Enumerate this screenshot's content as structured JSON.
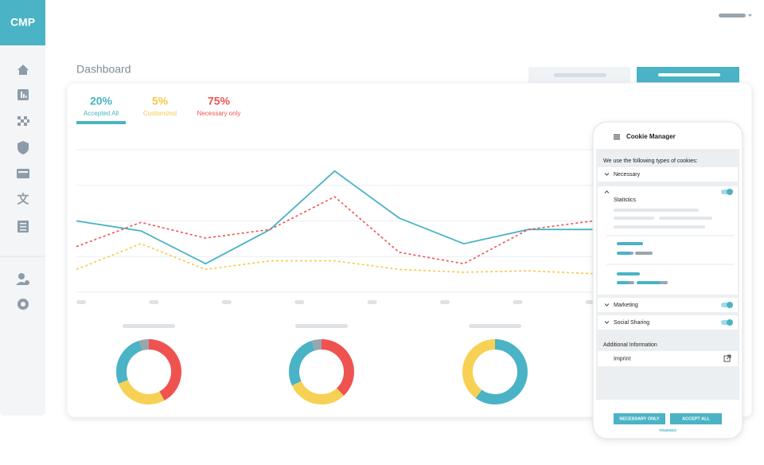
{
  "sidebar": {
    "logo": "CMP"
  },
  "dashboard": {
    "title": "Dashboard",
    "stats": [
      {
        "value": "20%",
        "label": "Accepted All",
        "color": "#4ab3c6"
      },
      {
        "value": "5%",
        "label": "Customized",
        "color": "#f7c948"
      },
      {
        "value": "75%",
        "label": "Necessary only",
        "color": "#ef5350"
      }
    ],
    "line_chart": {
      "type": "line",
      "x": [
        0,
        1,
        2,
        3,
        4,
        5,
        6,
        7,
        8
      ],
      "xlim": [
        0,
        8
      ],
      "ylim": [
        0,
        100
      ],
      "grid": [
        0,
        25,
        50,
        75,
        100
      ],
      "series": [
        {
          "color": "#4ab3c6",
          "dashed": false,
          "values": [
            50,
            43,
            20,
            44,
            85,
            52,
            34,
            44,
            44
          ]
        },
        {
          "color": "#ef5350",
          "dashed": true,
          "values": [
            32,
            49,
            38,
            44,
            67,
            28,
            20,
            44,
            50
          ]
        },
        {
          "color": "#f7c948",
          "dashed": true,
          "values": [
            16,
            34,
            16,
            22,
            22,
            16,
            14,
            15,
            13
          ]
        }
      ]
    },
    "donuts": [
      {
        "type": "pie",
        "values": [
          42,
          27,
          26,
          5
        ],
        "colors": [
          "#ef5350",
          "#f7d154",
          "#4ab3c6",
          "#9aa5ae"
        ]
      },
      {
        "type": "pie",
        "values": [
          38,
          30,
          27,
          5
        ],
        "colors": [
          "#ef5350",
          "#f7d154",
          "#4ab3c6",
          "#9aa5ae"
        ]
      },
      {
        "type": "pie",
        "values": [
          60,
          40
        ],
        "colors": [
          "#4ab3c6",
          "#f7d154"
        ]
      }
    ]
  },
  "cookie_manager": {
    "title": "Cookie Manager",
    "intro": "We use the following types of cookies:",
    "sections": [
      {
        "label": "Necessary",
        "toggle": false
      },
      {
        "label": "Statistics",
        "toggle": true
      },
      {
        "label": "Marketing",
        "toggle": true
      },
      {
        "label": "Social Sharing",
        "toggle": true
      }
    ],
    "additional": "Additional Information",
    "imprint": "Imprint",
    "buttons": [
      "NECESSARY ONLY",
      "ACCEPT ALL"
    ],
    "brand": "TRUENDO"
  }
}
